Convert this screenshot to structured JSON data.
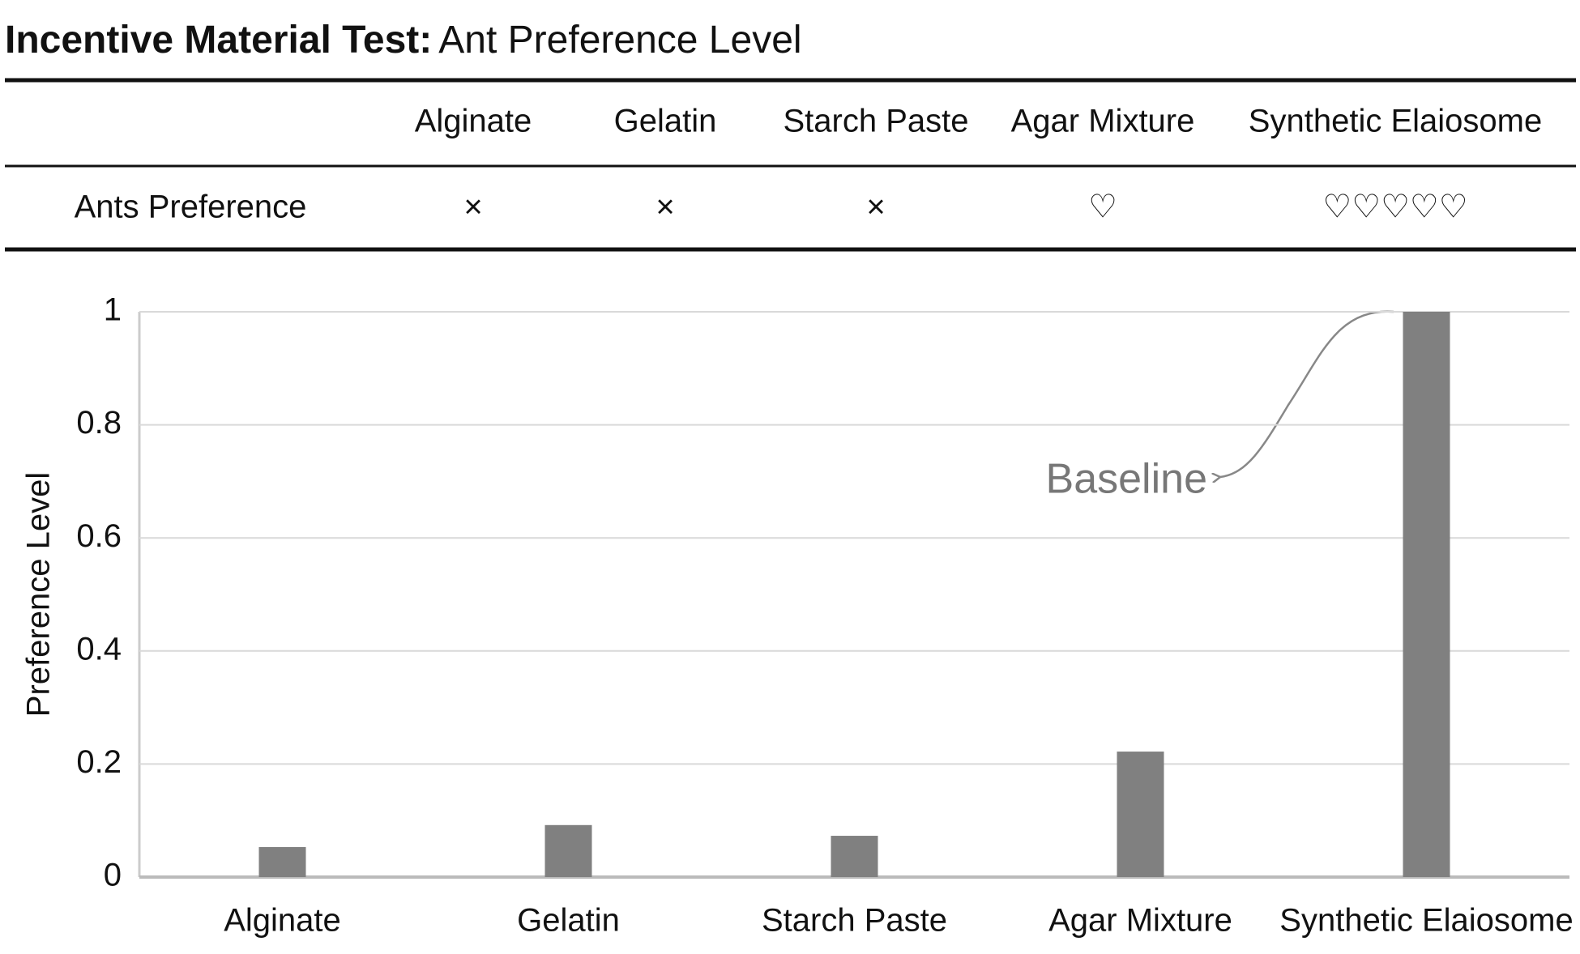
{
  "title_bold": "Incentive Material Test:",
  "title_rest": "Ant Preference Level",
  "table": {
    "columns": [
      "Alginate",
      "Gelatin",
      "Starch Paste",
      "Agar Mixture",
      "Synthetic Elaiosome"
    ],
    "rows": [
      {
        "label": "Ants Preference",
        "cells": [
          "×",
          "×",
          "×",
          "♡",
          "♡♡♡♡♡"
        ]
      }
    ]
  },
  "chart_data": {
    "type": "bar",
    "y_label": "Preference Level",
    "categories": [
      "Alginate",
      "Gelatin",
      "Starch Paste",
      "Agar Mixture",
      "Synthetic Elaiosome"
    ],
    "values": [
      0.053,
      0.092,
      0.073,
      0.222,
      1
    ],
    "color": "#808080",
    "ylim": [
      0,
      1
    ],
    "yticks": [
      0,
      0.2,
      0.4,
      0.6,
      0.8,
      1
    ],
    "grid": true,
    "annotation": "Baseline"
  }
}
